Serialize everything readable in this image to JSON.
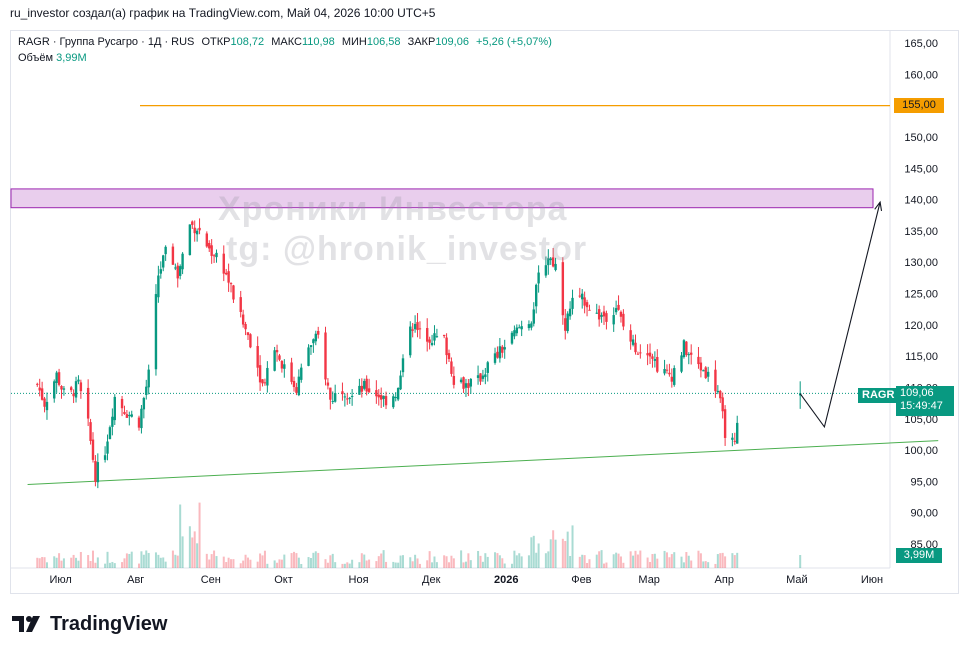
{
  "caption": "ru_investor создал(а) график на TradingView.com, Май 04, 2026 10:00 UTC+5",
  "legend": {
    "symbol_line": "RAGR · Группа Русагро · 1Д · RUS",
    "open_label": "ОТКР",
    "open_value": "108,72",
    "high_label": "МАКС",
    "high_value": "110,98",
    "low_label": "МИН",
    "low_value": "106,58",
    "close_label": "ЗАКР",
    "close_value": "109,06",
    "change": "+5,26 (+5,07%)",
    "volume_label": "Объём",
    "volume_value": "3,99M"
  },
  "watermark": {
    "line1": "Хроники Инвестора",
    "line2": "tg: @hronik_investor"
  },
  "tags": {
    "level": "155,00",
    "symbol": "RAGR",
    "price": "109,06",
    "countdown": "15:49:47",
    "volume": "3,99M"
  },
  "brand": {
    "name": "TradingView"
  },
  "colors": {
    "up": "#089981",
    "down": "#f23645",
    "level": "#f59d00",
    "support": "#4caf50",
    "zone_fill": "#e1bee7",
    "zone_border": "#9c27b0"
  },
  "chart_data": {
    "type": "candlestick",
    "symbol": "RAGR",
    "timeframe": "1Д",
    "y_ticks": [
      "165,00",
      "160,00",
      "155,00",
      "150,00",
      "145,00",
      "140,00",
      "135,00",
      "130,00",
      "125,00",
      "120,00",
      "115,00",
      "110,00",
      "105,00",
      "100,00",
      "95,00",
      "90,00",
      "85,00"
    ],
    "ylim": [
      82.5,
      167.5
    ],
    "x_ticks": [
      "Июл",
      "Авг",
      "Сен",
      "Окт",
      "Ноя",
      "Дек",
      "2026",
      "Фев",
      "Мар",
      "Апр",
      "Май",
      "Июн"
    ],
    "bold_x_tick": "2026",
    "close_series": [
      {
        "date": "2025-06-23",
        "close": 110.5
      },
      {
        "date": "2025-06-26",
        "close": 107.5
      },
      {
        "date": "2025-07-01",
        "close": 112.0
      },
      {
        "date": "2025-07-05",
        "close": 108.0
      },
      {
        "date": "2025-07-10",
        "close": 110.5
      },
      {
        "date": "2025-07-14",
        "close": 104.0
      },
      {
        "date": "2025-07-17",
        "close": 96.0
      },
      {
        "date": "2025-07-21",
        "close": 100.0
      },
      {
        "date": "2025-07-25",
        "close": 108.5
      },
      {
        "date": "2025-07-30",
        "close": 106.0
      },
      {
        "date": "2025-08-04",
        "close": 104.5
      },
      {
        "date": "2025-08-08",
        "close": 112.0
      },
      {
        "date": "2025-08-12",
        "close": 128.0
      },
      {
        "date": "2025-08-16",
        "close": 132.5
      },
      {
        "date": "2025-08-20",
        "close": 128.0
      },
      {
        "date": "2025-08-25",
        "close": 136.0
      },
      {
        "date": "2025-08-28",
        "close": 135.5
      },
      {
        "date": "2025-09-02",
        "close": 132.0
      },
      {
        "date": "2025-09-06",
        "close": 131.0
      },
      {
        "date": "2025-09-10",
        "close": 127.0
      },
      {
        "date": "2025-09-15",
        "close": 121.0
      },
      {
        "date": "2025-09-19",
        "close": 117.5
      },
      {
        "date": "2025-09-24",
        "close": 110.5
      },
      {
        "date": "2025-09-29",
        "close": 116.5
      },
      {
        "date": "2025-10-03",
        "close": 113.0
      },
      {
        "date": "2025-10-08",
        "close": 110.0
      },
      {
        "date": "2025-10-13",
        "close": 116.5
      },
      {
        "date": "2025-10-17",
        "close": 118.0
      },
      {
        "date": "2025-10-22",
        "close": 108.0
      },
      {
        "date": "2025-10-27",
        "close": 110.0
      },
      {
        "date": "2025-10-31",
        "close": 108.5
      },
      {
        "date": "2025-11-05",
        "close": 110.0
      },
      {
        "date": "2025-11-10",
        "close": 109.0
      },
      {
        "date": "2025-11-14",
        "close": 108.0
      },
      {
        "date": "2025-11-19",
        "close": 109.5
      },
      {
        "date": "2025-11-24",
        "close": 120.5
      },
      {
        "date": "2025-11-28",
        "close": 118.5
      },
      {
        "date": "2025-12-03",
        "close": 118.0
      },
      {
        "date": "2025-12-08",
        "close": 117.5
      },
      {
        "date": "2025-12-12",
        "close": 111.5
      },
      {
        "date": "2025-12-17",
        "close": 110.5
      },
      {
        "date": "2025-12-22",
        "close": 111.0
      },
      {
        "date": "2025-12-26",
        "close": 113.5
      },
      {
        "date": "2026-01-02",
        "close": 116.5
      },
      {
        "date": "2026-01-08",
        "close": 119.5
      },
      {
        "date": "2026-01-13",
        "close": 121.0
      },
      {
        "date": "2026-01-16",
        "close": 127.5
      },
      {
        "date": "2026-01-20",
        "close": 131.0
      },
      {
        "date": "2026-01-23",
        "close": 129.5
      },
      {
        "date": "2026-01-27",
        "close": 120.0
      },
      {
        "date": "2026-01-30",
        "close": 123.5
      },
      {
        "date": "2026-02-04",
        "close": 124.0
      },
      {
        "date": "2026-02-09",
        "close": 121.5
      },
      {
        "date": "2026-02-13",
        "close": 121.5
      },
      {
        "date": "2026-02-17",
        "close": 123.0
      },
      {
        "date": "2026-02-21",
        "close": 118.5
      },
      {
        "date": "2026-02-26",
        "close": 116.0
      },
      {
        "date": "2026-03-03",
        "close": 116.0
      },
      {
        "date": "2026-03-07",
        "close": 112.5
      },
      {
        "date": "2026-03-12",
        "close": 112.0
      },
      {
        "date": "2026-03-17",
        "close": 116.5
      },
      {
        "date": "2026-03-21",
        "close": 114.0
      },
      {
        "date": "2026-03-26",
        "close": 112.5
      },
      {
        "date": "2026-03-31",
        "close": 109.5
      },
      {
        "date": "2026-04-03",
        "close": 103.0
      },
      {
        "date": "2026-04-07",
        "close": 100.5
      },
      {
        "date": "2026-04-08",
        "close": 103.8
      },
      {
        "date": "2026-05-04",
        "close": 109.06
      }
    ],
    "volume_last": "3,99M",
    "annotations": {
      "horizontal_level": 155.0,
      "resistance_zone": [
        138.7,
        141.7
      ],
      "support_trendline": [
        {
          "date": "2025-06-19",
          "price": 94.5
        },
        {
          "date": "2026-06-30",
          "price": 101.5
        }
      ],
      "projection_path": [
        {
          "date": "2026-05-04",
          "price": 109.0
        },
        {
          "date": "2026-05-14",
          "price": 103.7
        },
        {
          "date": "2026-06-06",
          "price": 139.6
        }
      ]
    }
  }
}
